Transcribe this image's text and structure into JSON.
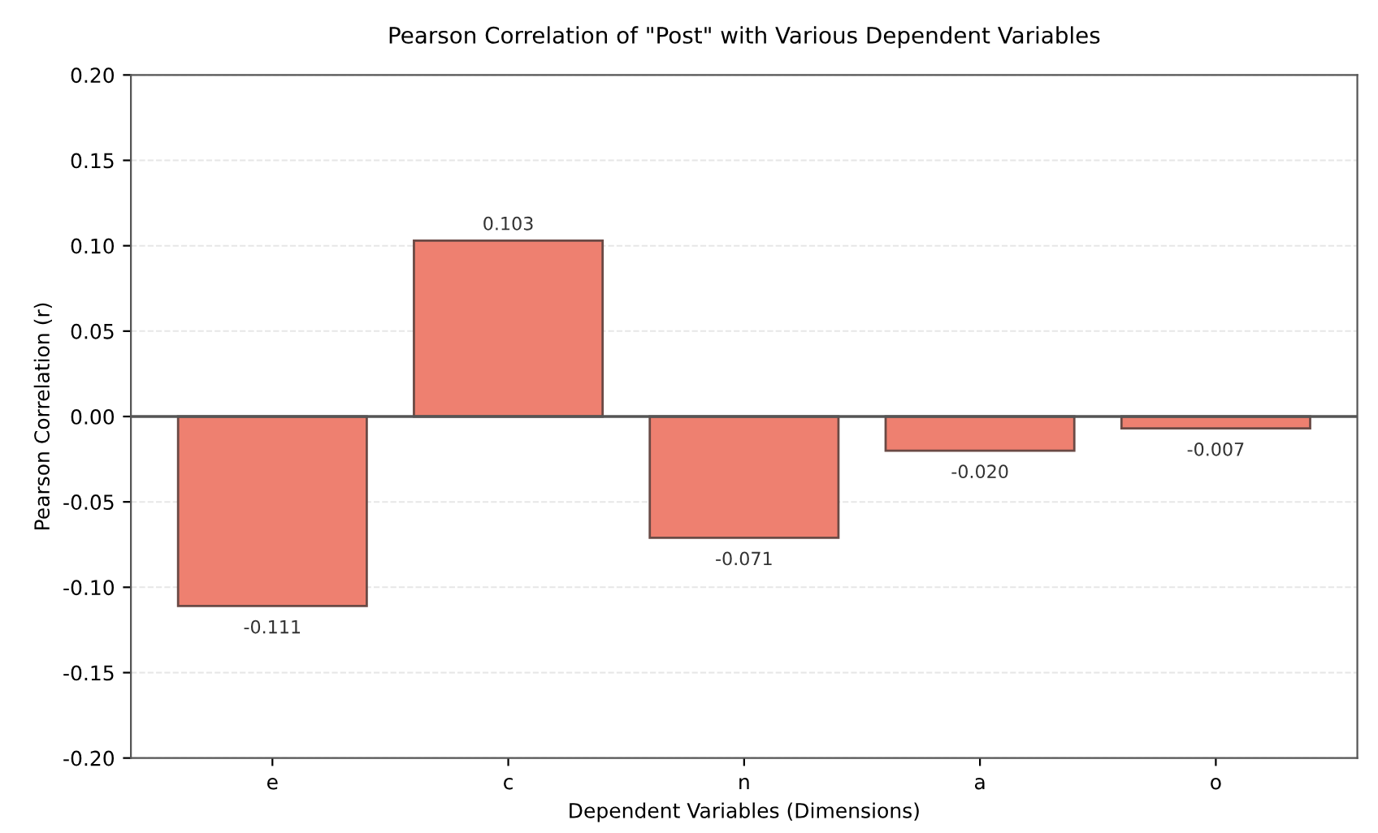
{
  "chart_data": {
    "type": "bar",
    "title": "Pearson Correlation of \"Post\" with Various Dependent Variables",
    "xlabel": "Dependent Variables (Dimensions)",
    "ylabel": "Pearson Correlation (r)",
    "categories": [
      "e",
      "c",
      "n",
      "a",
      "o"
    ],
    "values": [
      -0.111,
      0.103,
      -0.071,
      -0.02,
      -0.007
    ],
    "value_labels": [
      "-0.111",
      "0.103",
      "-0.071",
      "-0.020",
      "-0.007"
    ],
    "color": "#ee8070",
    "ylim": [
      -0.2,
      0.2
    ],
    "yticks": [
      {
        "value": -0.2,
        "label": "-0.20"
      },
      {
        "value": -0.15,
        "label": "-0.15"
      },
      {
        "value": -0.1,
        "label": "-0.10"
      },
      {
        "value": -0.05,
        "label": "-0.05"
      },
      {
        "value": 0,
        "label": "0.00"
      },
      {
        "value": 0.05,
        "label": "0.05"
      },
      {
        "value": 0.1,
        "label": "0.10"
      },
      {
        "value": 0.15,
        "label": "0.15"
      },
      {
        "value": 0.2,
        "label": "0.20"
      }
    ],
    "ref_lines": [
      {
        "axis": "y",
        "value": 0,
        "color": "#555555"
      }
    ],
    "grid": "y",
    "legend": false
  }
}
